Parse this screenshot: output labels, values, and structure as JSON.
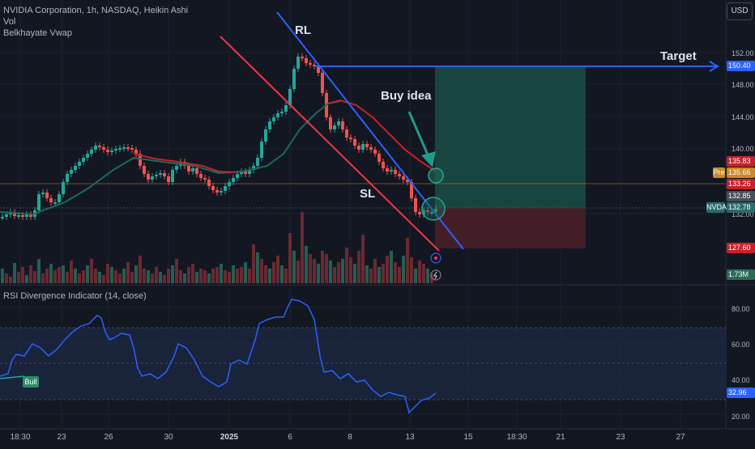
{
  "header": {
    "title": "NVIDIA Corporation, 1h, NASDAQ, Heikin Ashi",
    "indicator_vol": "Vol",
    "indicator_vwap": "Belkhayate Vwap",
    "currency_button": "USD"
  },
  "rsi_panel": {
    "title": "RSI Divergence Indicator (14, close)",
    "last_value": "32.96",
    "bull_label": "Bull",
    "axis_labels": [
      "80.00",
      "60.00",
      "40.00",
      "20.00"
    ]
  },
  "price_axis": {
    "labels": [
      "152.00",
      "148.00",
      "144.00",
      "140.00",
      "132.00"
    ],
    "tags": {
      "target": "150.40",
      "red_level": "135.83",
      "pre_label": "Pre",
      "pre_price": "135.66",
      "level_133": "133.26",
      "level_13285": "132.85",
      "symbol": "NVDA",
      "last_price": "132.78",
      "stop": "127.60",
      "volume": "1.73M"
    }
  },
  "time_axis": {
    "labels": [
      "18:30",
      "23",
      "26",
      "30",
      "2025",
      "6",
      "8",
      "13",
      "15",
      "18:30",
      "21",
      "23",
      "27"
    ]
  },
  "annotations": {
    "rl": "RL",
    "sl": "SL",
    "buy_idea": "Buy idea",
    "target": "Target"
  },
  "colors": {
    "background": "#131722",
    "up_candle": "#26a69a",
    "down_candle": "#ef5350",
    "trend_red": "#f23645",
    "trend_blue": "#2962ff",
    "vwap_red": "#c7212a",
    "vwap_green": "#1e6b55",
    "rsi_line": "#2962ff",
    "target_zone": "#1a4a43",
    "stop_zone": "#4a1f27"
  }
}
